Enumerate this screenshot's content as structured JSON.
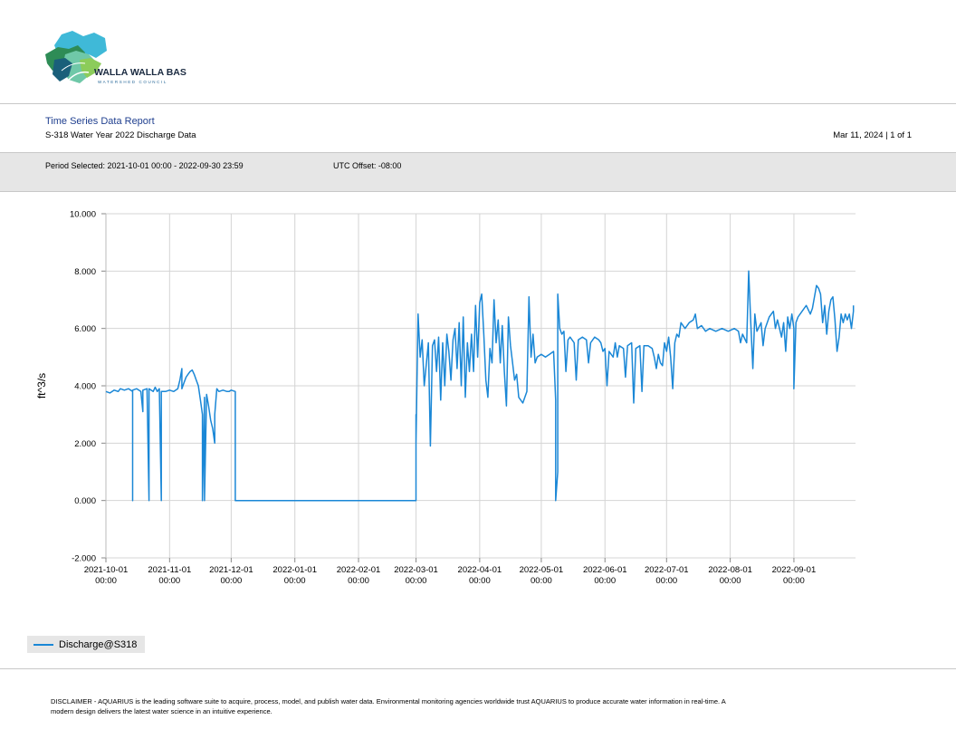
{
  "logo": {
    "line1": "WALLA WALLA BASIN",
    "line2": "WATERSHED COUNCIL"
  },
  "header": {
    "title": "Time Series Data Report",
    "subtitle": "S-318 Water Year 2022 Discharge Data",
    "date_page": "Mar 11, 2024 | 1 of 1"
  },
  "period": {
    "selected": "Period Selected: 2021-10-01 00:00 - 2022-09-30 23:59",
    "utc": "UTC Offset: -08:00"
  },
  "colors": {
    "series": "#1a87d6",
    "grid": "#d4d4d4",
    "band": "#e6e6e6",
    "title": "#1f3f8f"
  },
  "legend": {
    "label": "Discharge@S318"
  },
  "disclaimer": "DISCLAIMER - AQUARIUS is the leading software suite to acquire, process, model, and publish water data. Environmental monitoring agencies worldwide trust AQUARIUS to produce accurate water information in real-time. A modern design delivers the latest water science in an intuitive experience.",
  "chart_data": {
    "type": "line",
    "ylabel": "ft^3/s",
    "ylim": [
      -2.0,
      10.0
    ],
    "xlim": [
      "2021-10-01",
      "2022-09-30"
    ],
    "yticks": [
      "10.000",
      "8.000",
      "6.000",
      "4.000",
      "2.000",
      "0.000",
      "-2.000"
    ],
    "xticks": [
      {
        "date": "2021-10-01",
        "l1": "2021-10-01",
        "l2": "00:00"
      },
      {
        "date": "2021-11-01",
        "l1": "2021-11-01",
        "l2": "00:00"
      },
      {
        "date": "2021-12-01",
        "l1": "2021-12-01",
        "l2": "00:00"
      },
      {
        "date": "2022-01-01",
        "l1": "2022-01-01",
        "l2": "00:00"
      },
      {
        "date": "2022-02-01",
        "l1": "2022-02-01",
        "l2": "00:00"
      },
      {
        "date": "2022-03-01",
        "l1": "2022-03-01",
        "l2": "00:00"
      },
      {
        "date": "2022-04-01",
        "l1": "2022-04-01",
        "l2": "00:00"
      },
      {
        "date": "2022-05-01",
        "l1": "2022-05-01",
        "l2": "00:00"
      },
      {
        "date": "2022-06-01",
        "l1": "2022-06-01",
        "l2": "00:00"
      },
      {
        "date": "2022-07-01",
        "l1": "2022-07-01",
        "l2": "00:00"
      },
      {
        "date": "2022-08-01",
        "l1": "2022-08-01",
        "l2": "00:00"
      },
      {
        "date": "2022-09-01",
        "l1": "2022-09-01",
        "l2": "00:00"
      }
    ],
    "grid": true,
    "legend_position": "bottom-left",
    "series": [
      {
        "name": "Discharge@S318",
        "points": [
          [
            "2021-10-01",
            3.8
          ],
          [
            "2021-10-03",
            3.75
          ],
          [
            "2021-10-05",
            3.85
          ],
          [
            "2021-10-07",
            3.8
          ],
          [
            "2021-10-08",
            3.9
          ],
          [
            "2021-10-10",
            3.85
          ],
          [
            "2021-10-12",
            3.9
          ],
          [
            "2021-10-14",
            3.8
          ],
          [
            "2021-10-14",
            0.0
          ],
          [
            "2021-10-14",
            3.85
          ],
          [
            "2021-10-16",
            3.9
          ],
          [
            "2021-10-18",
            3.8
          ],
          [
            "2021-10-19",
            3.1
          ],
          [
            "2021-10-19",
            3.85
          ],
          [
            "2021-10-21",
            3.9
          ],
          [
            "2021-10-22",
            0.0
          ],
          [
            "2021-10-22",
            3.9
          ],
          [
            "2021-10-24",
            3.8
          ],
          [
            "2021-10-25",
            3.95
          ],
          [
            "2021-10-26",
            3.8
          ],
          [
            "2021-10-27",
            3.9
          ],
          [
            "2021-10-28",
            0.0
          ],
          [
            "2021-10-28",
            3.8
          ],
          [
            "2021-10-30",
            3.8
          ],
          [
            "2021-11-01",
            3.85
          ],
          [
            "2021-11-03",
            3.8
          ],
          [
            "2021-11-05",
            3.9
          ],
          [
            "2021-11-06",
            4.2
          ],
          [
            "2021-11-07",
            4.6
          ],
          [
            "2021-11-07",
            3.9
          ],
          [
            "2021-11-08",
            4.1
          ],
          [
            "2021-11-09",
            4.3
          ],
          [
            "2021-11-10",
            4.4
          ],
          [
            "2021-11-11",
            4.5
          ],
          [
            "2021-11-12",
            4.55
          ],
          [
            "2021-11-13",
            4.4
          ],
          [
            "2021-11-14",
            4.2
          ],
          [
            "2021-11-15",
            4.0
          ],
          [
            "2021-11-16",
            3.5
          ],
          [
            "2021-11-17",
            3.0
          ],
          [
            "2021-11-17",
            0.0
          ],
          [
            "2021-11-18",
            3.6
          ],
          [
            "2021-11-18",
            0.0
          ],
          [
            "2021-11-19",
            3.7
          ],
          [
            "2021-11-20",
            3.3
          ],
          [
            "2021-11-21",
            2.8
          ],
          [
            "2021-11-22",
            2.5
          ],
          [
            "2021-11-23",
            2.0
          ],
          [
            "2021-11-23",
            3.0
          ],
          [
            "2021-11-24",
            3.9
          ],
          [
            "2021-11-25",
            3.8
          ],
          [
            "2021-11-27",
            3.85
          ],
          [
            "2021-11-29",
            3.8
          ],
          [
            "2021-11-30",
            3.8
          ],
          [
            "2021-12-01",
            3.85
          ],
          [
            "2021-12-03",
            3.8
          ],
          [
            "2021-12-03",
            0.0
          ],
          [
            "2022-01-05",
            0.0
          ],
          [
            "2022-02-01",
            0.0
          ],
          [
            "2022-02-28",
            0.0
          ],
          [
            "2022-03-01",
            0.0
          ],
          [
            "2022-03-01",
            3.0
          ],
          [
            "2022-03-01",
            2.0
          ],
          [
            "2022-03-02",
            6.5
          ],
          [
            "2022-03-03",
            5.0
          ],
          [
            "2022-03-04",
            5.6
          ],
          [
            "2022-03-05",
            4.0
          ],
          [
            "2022-03-07",
            5.5
          ],
          [
            "2022-03-08",
            1.9
          ],
          [
            "2022-03-09",
            5.4
          ],
          [
            "2022-03-10",
            5.6
          ],
          [
            "2022-03-11",
            4.5
          ],
          [
            "2022-03-12",
            5.7
          ],
          [
            "2022-03-13",
            3.5
          ],
          [
            "2022-03-14",
            5.5
          ],
          [
            "2022-03-15",
            4.0
          ],
          [
            "2022-03-16",
            5.8
          ],
          [
            "2022-03-17",
            5.2
          ],
          [
            "2022-03-18",
            4.2
          ],
          [
            "2022-03-19",
            5.6
          ],
          [
            "2022-03-20",
            6.0
          ],
          [
            "2022-03-21",
            4.6
          ],
          [
            "2022-03-22",
            6.2
          ],
          [
            "2022-03-23",
            4.0
          ],
          [
            "2022-03-24",
            6.4
          ],
          [
            "2022-03-25",
            3.6
          ],
          [
            "2022-03-26",
            5.5
          ],
          [
            "2022-03-27",
            4.5
          ],
          [
            "2022-03-28",
            5.8
          ],
          [
            "2022-03-29",
            4.5
          ],
          [
            "2022-03-30",
            6.8
          ],
          [
            "2022-03-31",
            5.0
          ],
          [
            "2022-04-01",
            6.9
          ],
          [
            "2022-04-02",
            7.2
          ],
          [
            "2022-04-03",
            5.8
          ],
          [
            "2022-04-04",
            4.2
          ],
          [
            "2022-04-05",
            3.6
          ],
          [
            "2022-04-06",
            5.3
          ],
          [
            "2022-04-07",
            4.8
          ],
          [
            "2022-04-08",
            7.0
          ],
          [
            "2022-04-09",
            5.5
          ],
          [
            "2022-04-10",
            6.3
          ],
          [
            "2022-04-11",
            4.8
          ],
          [
            "2022-04-12",
            6.1
          ],
          [
            "2022-04-13",
            4.5
          ],
          [
            "2022-04-14",
            3.3
          ],
          [
            "2022-04-15",
            6.4
          ],
          [
            "2022-04-16",
            5.4
          ],
          [
            "2022-04-17",
            4.8
          ],
          [
            "2022-04-18",
            4.2
          ],
          [
            "2022-04-19",
            4.4
          ],
          [
            "2022-04-20",
            3.6
          ],
          [
            "2022-04-22",
            3.4
          ],
          [
            "2022-04-24",
            3.8
          ],
          [
            "2022-04-25",
            7.1
          ],
          [
            "2022-04-26",
            5.0
          ],
          [
            "2022-04-27",
            5.8
          ],
          [
            "2022-04-28",
            4.8
          ],
          [
            "2022-04-29",
            5.0
          ],
          [
            "2022-05-01",
            5.1
          ],
          [
            "2022-05-03",
            5.0
          ],
          [
            "2022-05-05",
            5.1
          ],
          [
            "2022-05-07",
            5.2
          ],
          [
            "2022-05-08",
            3.5
          ],
          [
            "2022-05-08",
            0.0
          ],
          [
            "2022-05-09",
            1.0
          ],
          [
            "2022-05-09",
            7.2
          ],
          [
            "2022-05-10",
            6.0
          ],
          [
            "2022-05-11",
            5.8
          ],
          [
            "2022-05-12",
            5.9
          ],
          [
            "2022-05-13",
            4.5
          ],
          [
            "2022-05-14",
            5.6
          ],
          [
            "2022-05-15",
            5.7
          ],
          [
            "2022-05-17",
            5.5
          ],
          [
            "2022-05-18",
            4.2
          ],
          [
            "2022-05-19",
            5.6
          ],
          [
            "2022-05-21",
            5.7
          ],
          [
            "2022-05-23",
            5.6
          ],
          [
            "2022-05-24",
            4.8
          ],
          [
            "2022-05-25",
            5.5
          ],
          [
            "2022-05-27",
            5.7
          ],
          [
            "2022-05-29",
            5.6
          ],
          [
            "2022-05-30",
            5.5
          ],
          [
            "2022-05-31",
            5.2
          ],
          [
            "2022-06-01",
            5.3
          ],
          [
            "2022-06-02",
            4.0
          ],
          [
            "2022-06-03",
            5.2
          ],
          [
            "2022-06-05",
            5.0
          ],
          [
            "2022-06-06",
            5.5
          ],
          [
            "2022-06-07",
            5.0
          ],
          [
            "2022-06-08",
            5.4
          ],
          [
            "2022-06-10",
            5.3
          ],
          [
            "2022-06-11",
            4.3
          ],
          [
            "2022-06-12",
            5.4
          ],
          [
            "2022-06-14",
            5.5
          ],
          [
            "2022-06-15",
            3.4
          ],
          [
            "2022-06-16",
            5.3
          ],
          [
            "2022-06-18",
            5.4
          ],
          [
            "2022-06-19",
            3.8
          ],
          [
            "2022-06-20",
            5.4
          ],
          [
            "2022-06-22",
            5.4
          ],
          [
            "2022-06-24",
            5.3
          ],
          [
            "2022-06-25",
            5.0
          ],
          [
            "2022-06-26",
            4.6
          ],
          [
            "2022-06-27",
            5.1
          ],
          [
            "2022-06-28",
            4.8
          ],
          [
            "2022-06-29",
            4.7
          ],
          [
            "2022-06-30",
            5.5
          ],
          [
            "2022-07-01",
            5.2
          ],
          [
            "2022-07-02",
            5.7
          ],
          [
            "2022-07-03",
            5.0
          ],
          [
            "2022-07-04",
            3.9
          ],
          [
            "2022-07-05",
            5.5
          ],
          [
            "2022-07-06",
            5.8
          ],
          [
            "2022-07-07",
            5.7
          ],
          [
            "2022-07-08",
            6.2
          ],
          [
            "2022-07-10",
            6.0
          ],
          [
            "2022-07-12",
            6.2
          ],
          [
            "2022-07-14",
            6.3
          ],
          [
            "2022-07-15",
            6.5
          ],
          [
            "2022-07-16",
            6.0
          ],
          [
            "2022-07-18",
            6.1
          ],
          [
            "2022-07-20",
            5.9
          ],
          [
            "2022-07-22",
            6.0
          ],
          [
            "2022-07-25",
            5.9
          ],
          [
            "2022-07-28",
            6.0
          ],
          [
            "2022-07-31",
            5.9
          ],
          [
            "2022-08-03",
            6.0
          ],
          [
            "2022-08-05",
            5.9
          ],
          [
            "2022-08-06",
            5.5
          ],
          [
            "2022-08-07",
            5.8
          ],
          [
            "2022-08-09",
            5.5
          ],
          [
            "2022-08-10",
            8.0
          ],
          [
            "2022-08-11",
            6.2
          ],
          [
            "2022-08-12",
            4.6
          ],
          [
            "2022-08-13",
            6.5
          ],
          [
            "2022-08-14",
            5.9
          ],
          [
            "2022-08-16",
            6.2
          ],
          [
            "2022-08-17",
            5.4
          ],
          [
            "2022-08-18",
            6.0
          ],
          [
            "2022-08-20",
            6.4
          ],
          [
            "2022-08-22",
            6.6
          ],
          [
            "2022-08-23",
            6.0
          ],
          [
            "2022-08-24",
            6.3
          ],
          [
            "2022-08-26",
            5.7
          ],
          [
            "2022-08-27",
            6.2
          ],
          [
            "2022-08-28",
            5.2
          ],
          [
            "2022-08-29",
            6.4
          ],
          [
            "2022-08-30",
            6.0
          ],
          [
            "2022-08-31",
            6.5
          ],
          [
            "2022-09-01",
            6.0
          ],
          [
            "2022-09-01",
            3.9
          ],
          [
            "2022-09-02",
            6.2
          ],
          [
            "2022-09-03",
            6.4
          ],
          [
            "2022-09-05",
            6.6
          ],
          [
            "2022-09-07",
            6.8
          ],
          [
            "2022-09-09",
            6.5
          ],
          [
            "2022-09-10",
            6.7
          ],
          [
            "2022-09-12",
            7.5
          ],
          [
            "2022-09-13",
            7.4
          ],
          [
            "2022-09-14",
            7.2
          ],
          [
            "2022-09-15",
            6.2
          ],
          [
            "2022-09-16",
            6.8
          ],
          [
            "2022-09-17",
            5.8
          ],
          [
            "2022-09-18",
            6.6
          ],
          [
            "2022-09-19",
            7.0
          ],
          [
            "2022-09-20",
            7.1
          ],
          [
            "2022-09-21",
            6.3
          ],
          [
            "2022-09-22",
            5.2
          ],
          [
            "2022-09-23",
            5.7
          ],
          [
            "2022-09-24",
            6.5
          ],
          [
            "2022-09-25",
            6.2
          ],
          [
            "2022-09-26",
            6.5
          ],
          [
            "2022-09-27",
            6.3
          ],
          [
            "2022-09-28",
            6.5
          ],
          [
            "2022-09-29",
            6.0
          ],
          [
            "2022-09-30",
            6.6
          ],
          [
            "2022-09-30",
            6.8
          ]
        ]
      }
    ]
  }
}
